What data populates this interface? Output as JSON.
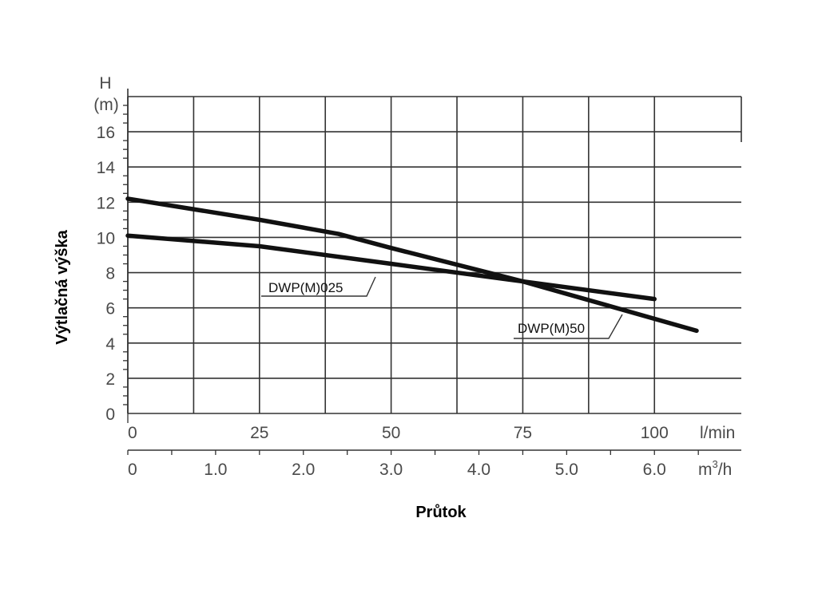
{
  "chart_data": {
    "type": "line",
    "ylabel": "Výtlačná výška",
    "xlabel": "Průtok",
    "y_unit_symbol": "H",
    "y_unit": "(m)",
    "ylim": [
      0,
      18
    ],
    "y_ticks": [
      0,
      2,
      4,
      6,
      8,
      10,
      12,
      14,
      16
    ],
    "xlim": [
      0,
      108
    ],
    "x_ticks": [
      0,
      25,
      50,
      75,
      100
    ],
    "x_unit": "l/min",
    "x2_ticks": [
      "0",
      "1.0",
      "2.0",
      "3.0",
      "4.0",
      "5.0",
      "6.0"
    ],
    "x2_unit_base": "m",
    "x2_unit_sup": "3",
    "x2_unit_tail": "/h",
    "grid": true,
    "series": [
      {
        "name": "DWP(M)025",
        "x": [
          0,
          25,
          50,
          75,
          100
        ],
        "y": [
          10.1,
          9.5,
          8.5,
          7.5,
          6.5
        ]
      },
      {
        "name": "DWP(M)50",
        "x": [
          0,
          25,
          40,
          50,
          75,
          108
        ],
        "y": [
          12.2,
          11,
          10.2,
          9.4,
          7.5,
          4.7
        ]
      }
    ]
  }
}
